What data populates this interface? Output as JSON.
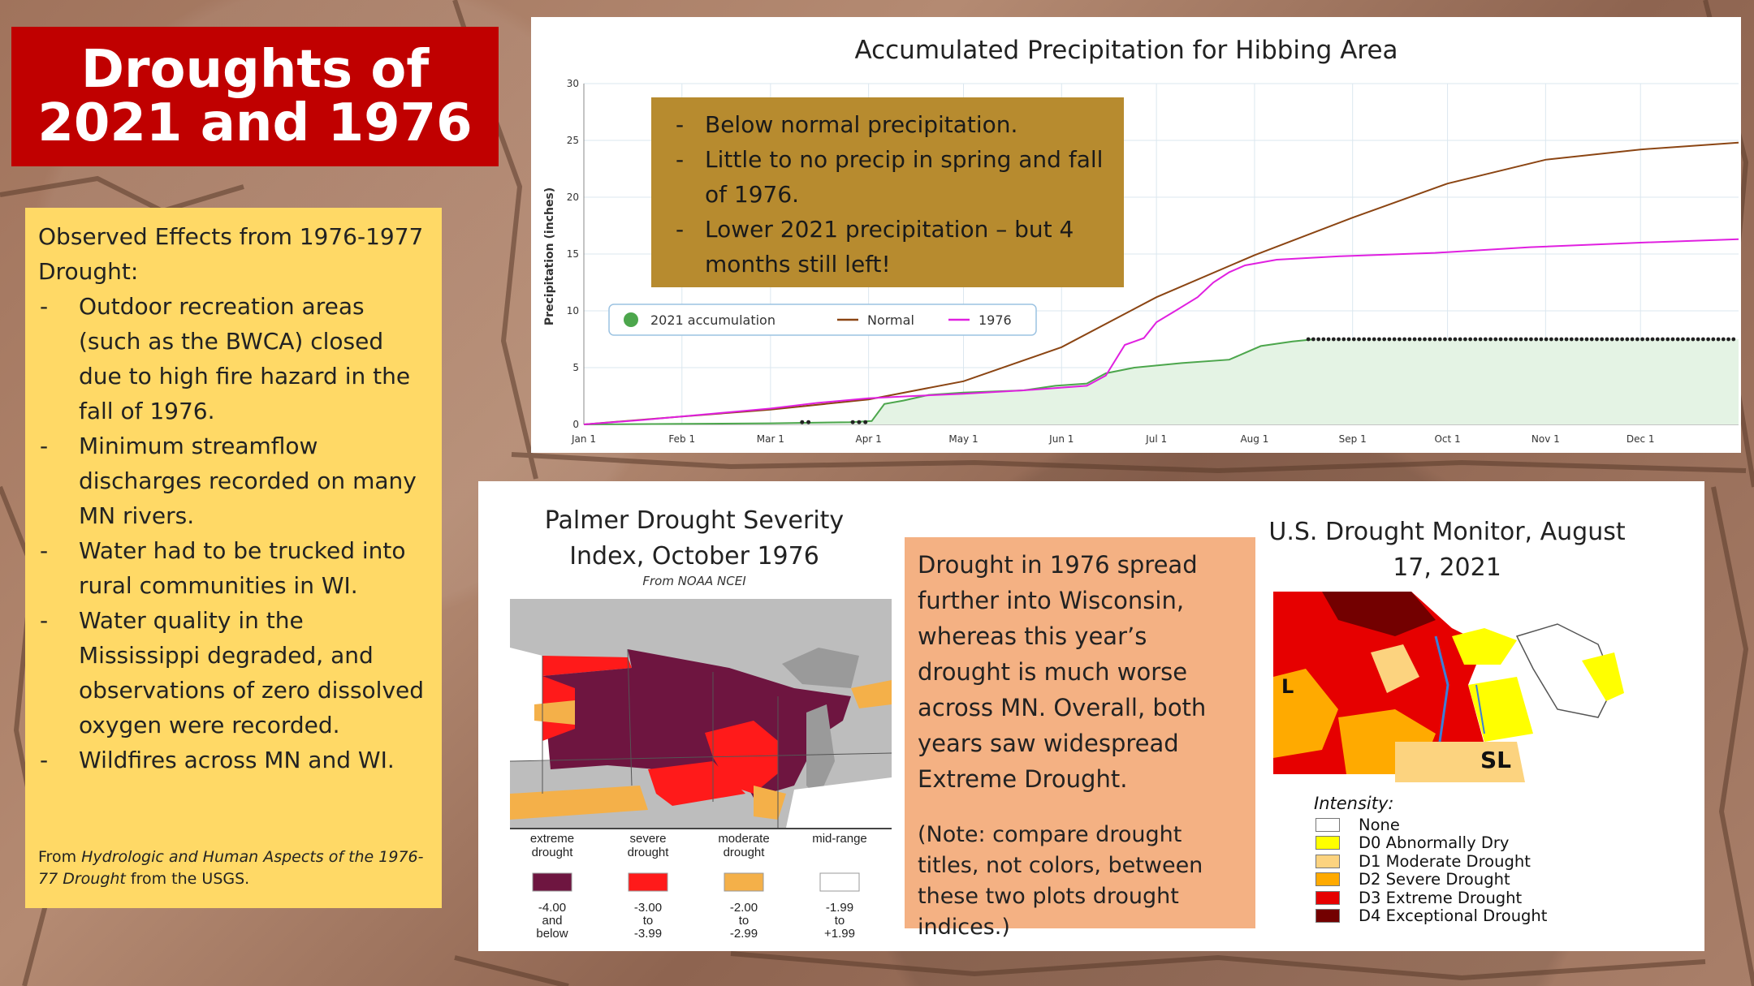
{
  "slide": {
    "title_line1": "Droughts of",
    "title_line2": "2021 and 1976"
  },
  "effects": {
    "intro": "Observed Effects from 1976-1977 Drought:",
    "items": [
      "Outdoor recreation areas (such as the BWCA) closed due to high fire hazard in the fall of 1976.",
      "Minimum streamflow discharges recorded on many MN rivers.",
      "Water had to be trucked into rural communities in WI.",
      "Water quality in the Mississippi degraded, and observations of zero dissolved oxygen were recorded.",
      "Wildfires across MN and WI."
    ],
    "source_prefix": "From ",
    "source_title": "Hydrologic and Human Aspects of the 1976-77 Drought",
    "source_suffix": " from the USGS."
  },
  "precip_notes": [
    "Below normal precipitation.",
    "Little to no precip in spring and fall of 1976.",
    "Lower 2021 precipitation – but 4 months still left!"
  ],
  "chart_data": [
    {
      "type": "line",
      "title": "Accumulated Precipitation for Hibbing Area",
      "ylabel": "Precipitation (inches)",
      "xlabel": "",
      "ylim": [
        0,
        30
      ],
      "yticks": [
        0,
        5,
        10,
        15,
        20,
        25,
        30
      ],
      "xlim": [
        1,
        366
      ],
      "xticks": [
        {
          "label": "Jan 1",
          "day": 1
        },
        {
          "label": "Feb 1",
          "day": 32
        },
        {
          "label": "Mar 1",
          "day": 60
        },
        {
          "label": "Apr 1",
          "day": 91
        },
        {
          "label": "May 1",
          "day": 121
        },
        {
          "label": "Jun 1",
          "day": 152
        },
        {
          "label": "Jul 1",
          "day": 182
        },
        {
          "label": "Aug 1",
          "day": 213
        },
        {
          "label": "Sep 1",
          "day": 244
        },
        {
          "label": "Oct 1",
          "day": 274
        },
        {
          "label": "Nov 1",
          "day": 305
        },
        {
          "label": "Dec 1",
          "day": 335
        }
      ],
      "grid": true,
      "legend_position": "left-middle",
      "series": [
        {
          "name": "2021 accumulation",
          "color": "#4ca64c",
          "style": "area",
          "points": [
            [
              1,
              0
            ],
            [
              60,
              0.1
            ],
            [
              85,
              0.2
            ],
            [
              92,
              0.3
            ],
            [
              96,
              1.8
            ],
            [
              102,
              2.1
            ],
            [
              110,
              2.6
            ],
            [
              121,
              2.8
            ],
            [
              140,
              3.0
            ],
            [
              150,
              3.4
            ],
            [
              160,
              3.6
            ],
            [
              166,
              4.5
            ],
            [
              175,
              5.0
            ],
            [
              190,
              5.4
            ],
            [
              205,
              5.7
            ],
            [
              210,
              6.3
            ],
            [
              215,
              6.9
            ],
            [
              225,
              7.3
            ],
            [
              232,
              7.5
            ]
          ]
        },
        {
          "name": "Normal",
          "color": "#8b4513",
          "style": "line",
          "points": [
            [
              1,
              0
            ],
            [
              32,
              0.7
            ],
            [
              60,
              1.3
            ],
            [
              91,
              2.2
            ],
            [
              121,
              3.8
            ],
            [
              152,
              6.8
            ],
            [
              182,
              11.2
            ],
            [
              213,
              14.9
            ],
            [
              244,
              18.2
            ],
            [
              274,
              21.2
            ],
            [
              305,
              23.3
            ],
            [
              335,
              24.2
            ],
            [
              366,
              24.8
            ]
          ]
        },
        {
          "name": "1976",
          "color": "#e020e0",
          "style": "line",
          "points": [
            [
              1,
              0
            ],
            [
              20,
              0.4
            ],
            [
              40,
              0.9
            ],
            [
              60,
              1.4
            ],
            [
              75,
              1.9
            ],
            [
              91,
              2.3
            ],
            [
              105,
              2.5
            ],
            [
              121,
              2.7
            ],
            [
              140,
              3.0
            ],
            [
              160,
              3.4
            ],
            [
              166,
              4.3
            ],
            [
              172,
              7.0
            ],
            [
              178,
              7.6
            ],
            [
              182,
              9.0
            ],
            [
              188,
              10.0
            ],
            [
              195,
              11.2
            ],
            [
              200,
              12.5
            ],
            [
              205,
              13.4
            ],
            [
              210,
              14.0
            ],
            [
              220,
              14.5
            ],
            [
              240,
              14.8
            ],
            [
              270,
              15.1
            ],
            [
              300,
              15.6
            ],
            [
              335,
              16.0
            ],
            [
              366,
              16.3
            ]
          ]
        }
      ],
      "markers": [
        {
          "series": "2021 accumulation",
          "days": [
            70,
            72,
            86,
            88,
            90
          ]
        },
        {
          "series": "2021 accumulation",
          "range": [
            230,
            366
          ],
          "value": 7.5,
          "note": "flat"
        }
      ]
    },
    {
      "type": "table",
      "title": "Palmer Drought Severity Index, October 1976",
      "subtitle": "From NOAA NCEI",
      "legend": [
        {
          "name": "extreme drought",
          "range": "-4.00 and below",
          "color": "#6e1540"
        },
        {
          "name": "severe drought",
          "range": "-3.00 to -3.99",
          "color": "#ff1a1a"
        },
        {
          "name": "moderate drought",
          "range": "-2.00 to -2.99",
          "color": "#f4b049"
        },
        {
          "name": "mid-range",
          "range": "-1.99 to +1.99",
          "color": "#ffffff"
        }
      ]
    },
    {
      "type": "table",
      "title": "U.S. Drought Monitor, August 17, 2021",
      "legend_title": "Intensity:",
      "labels_on_map": [
        "L",
        "SL"
      ],
      "legend": [
        {
          "name": "None",
          "color": "#ffffff"
        },
        {
          "name": "D0 Abnormally Dry",
          "color": "#ffff00"
        },
        {
          "name": "D1 Moderate Drought",
          "color": "#fcd37f"
        },
        {
          "name": "D2 Severe Drought",
          "color": "#ffaa00"
        },
        {
          "name": "D3 Extreme Drought",
          "color": "#e60000"
        },
        {
          "name": "D4 Exceptional Drought",
          "color": "#730000"
        }
      ]
    }
  ],
  "compare": {
    "main": "Drought in 1976 spread further into Wisconsin, whereas this year’s drought is much worse across MN. Overall, both years saw widespread Extreme Drought.",
    "note": "(Note: compare drought titles, not colors, between these two plots drought indices.)"
  }
}
